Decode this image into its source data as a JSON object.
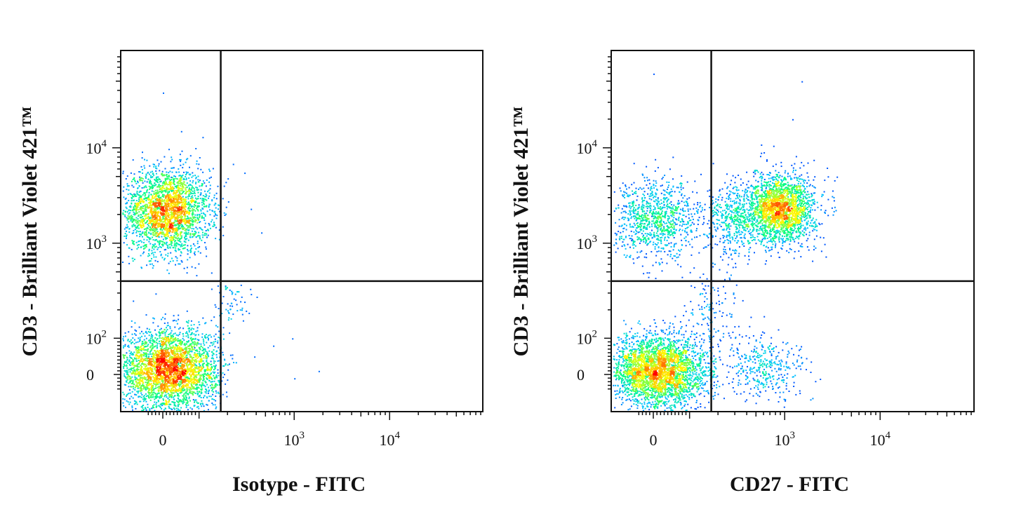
{
  "chart_data": [
    {
      "type": "scatter",
      "subtype": "flow-cytometry-pseudocolor-density",
      "xlabel": "Isotype - FITC",
      "ylabel": "CD3 - Brilliant Violet 421™",
      "xscale": "biexponential",
      "yscale": "biexponential",
      "xlim": [
        -50,
        50000
      ],
      "ylim": [
        -50,
        80000
      ],
      "xticks": [
        {
          "label": "0",
          "value": 0
        },
        {
          "label": "10",
          "sup": "3",
          "value": 1000
        },
        {
          "label": "10",
          "sup": "4",
          "value": 10000
        }
      ],
      "yticks": [
        {
          "label": "0",
          "value": 0
        },
        {
          "label": "10",
          "sup": "2",
          "value": 100
        },
        {
          "label": "10",
          "sup": "3",
          "value": 1000
        },
        {
          "label": "10",
          "sup": "4",
          "value": 10000
        }
      ],
      "gates": {
        "x": 170,
        "y": 400
      },
      "populations": [
        {
          "name": "",
          "x_center": 10,
          "y_center": 2200,
          "x_spread": 60,
          "y_spread": 0.45,
          "count": 2600
        },
        {
          "name": "",
          "x_center": 15,
          "y_center": 15,
          "x_spread": 70,
          "y_spread": 55,
          "count": 3400
        },
        {
          "name": "",
          "x_center": 220,
          "y_center": 250,
          "x_spread": 0.25,
          "y_spread": 0.25,
          "count": 60
        }
      ],
      "outliers": [
        [
          300,
          5500
        ],
        [
          350,
          2300
        ],
        [
          450,
          1300
        ],
        [
          950,
          100
        ],
        [
          600,
          80
        ],
        [
          380,
          50
        ],
        [
          1800,
          10
        ],
        [
          1000,
          -10
        ],
        [
          0,
          38000
        ],
        [
          50,
          15000
        ],
        [
          200,
          4800
        ]
      ],
      "colormap": [
        "#0000ff",
        "#00c8ff",
        "#00ff80",
        "#ffff00",
        "#ff8000",
        "#ff0000"
      ]
    },
    {
      "type": "scatter",
      "subtype": "flow-cytometry-pseudocolor-density",
      "xlabel": "CD27 - FITC",
      "ylabel": "CD3 - Brilliant Violet 421™",
      "xscale": "biexponential",
      "yscale": "biexponential",
      "xlim": [
        -50,
        50000
      ],
      "ylim": [
        -50,
        80000
      ],
      "xticks": [
        {
          "label": "0",
          "value": 0
        },
        {
          "label": "10",
          "sup": "3",
          "value": 1000
        },
        {
          "label": "10",
          "sup": "4",
          "value": 10000
        }
      ],
      "yticks": [
        {
          "label": "0",
          "value": 0
        },
        {
          "label": "10",
          "sup": "2",
          "value": 100
        },
        {
          "label": "10",
          "sup": "3",
          "value": 1000
        },
        {
          "label": "10",
          "sup": "4",
          "value": 10000
        }
      ],
      "gates": {
        "x": 170,
        "y": 400
      },
      "populations": [
        {
          "name": "",
          "x_center": 900,
          "y_center": 2300,
          "x_spread": 0.35,
          "y_spread": 0.35,
          "count": 2200
        },
        {
          "name": "",
          "x_center": 5,
          "y_center": 1800,
          "x_spread": 60,
          "y_spread": 0.4,
          "count": 1000
        },
        {
          "name": "",
          "x_center": 300,
          "y_center": 1800,
          "x_spread": 0.3,
          "y_spread": 0.4,
          "count": 500
        },
        {
          "name": "",
          "x_center": 10,
          "y_center": 10,
          "x_spread": 70,
          "y_spread": 50,
          "count": 3300
        },
        {
          "name": "",
          "x_center": 600,
          "y_center": 20,
          "x_spread": 0.45,
          "y_spread": 45,
          "count": 380
        },
        {
          "name": "",
          "x_center": 180,
          "y_center": 200,
          "x_spread": 0.3,
          "y_spread": 0.4,
          "count": 120
        }
      ],
      "outliers": [
        [
          0,
          60000
        ],
        [
          1500,
          50000
        ],
        [
          1200,
          20000
        ],
        [
          600,
          9000
        ],
        [
          2000,
          7500
        ],
        [
          3500,
          5000
        ]
      ],
      "colormap": [
        "#0000ff",
        "#00c8ff",
        "#00ff80",
        "#ffff00",
        "#ff8000",
        "#ff0000"
      ]
    }
  ]
}
